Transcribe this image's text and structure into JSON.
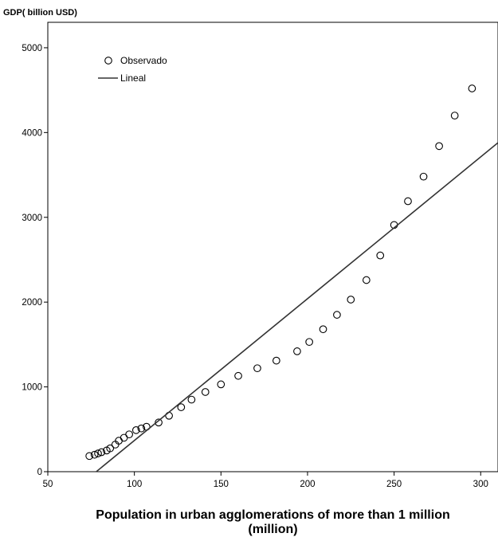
{
  "chart_data": {
    "type": "scatter",
    "ylabel": "GDP( billion USD)",
    "xlabel_line1": "Population in urban agglomerations of more than 1 million",
    "xlabel_line2": "(million)",
    "xlim": [
      50,
      310
    ],
    "ylim": [
      0,
      5300
    ],
    "x_ticks": [
      50,
      100,
      150,
      200,
      250,
      300
    ],
    "y_ticks": [
      0,
      1000,
      2000,
      3000,
      4000,
      5000
    ],
    "grid": false,
    "legend_position": "top-left",
    "series": [
      {
        "name": "Observado",
        "kind": "points",
        "color": "#000000",
        "x": [
          74,
          77,
          79,
          81,
          84,
          86,
          89,
          91,
          94,
          97,
          101,
          104,
          107,
          114,
          120,
          127,
          133,
          141,
          150,
          160,
          171,
          182,
          194,
          201,
          209,
          217,
          225,
          234,
          242,
          250,
          258,
          267,
          276,
          285,
          295
        ],
        "y": [
          185,
          200,
          215,
          230,
          250,
          275,
          320,
          365,
          400,
          440,
          490,
          510,
          530,
          580,
          660,
          760,
          850,
          940,
          1030,
          1130,
          1220,
          1310,
          1420,
          1530,
          1680,
          1850,
          2030,
          2260,
          2550,
          2910,
          3190,
          3480,
          3840,
          4200,
          4520
        ]
      },
      {
        "name": "Lineal",
        "kind": "line",
        "color": "#333333",
        "x": [
          78,
          310
        ],
        "y": [
          0,
          3880
        ]
      }
    ]
  }
}
